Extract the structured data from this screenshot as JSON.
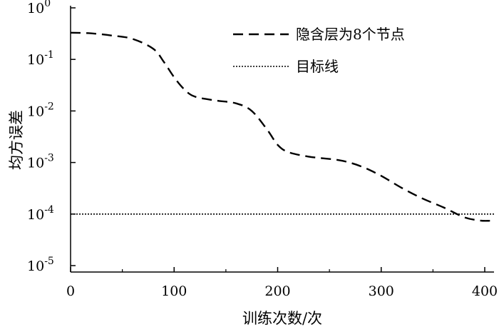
{
  "chart_data": {
    "type": "line",
    "xlabel": "训练次数/次",
    "ylabel": "均方误差",
    "xlim": [
      0,
      410
    ],
    "ylim": [
      1e-05,
      1
    ],
    "yscale": "log",
    "grid": false,
    "legend_position": "top-right",
    "x_ticks": [
      {
        "value": 0,
        "label": "0"
      },
      {
        "value": 100,
        "label": "100"
      },
      {
        "value": 200,
        "label": "200"
      },
      {
        "value": 300,
        "label": "300"
      },
      {
        "value": 400,
        "label": "400"
      }
    ],
    "y_ticks": [
      {
        "value": 1,
        "base": "10",
        "exp": "0"
      },
      {
        "value": 0.1,
        "base": "10",
        "exp": "-1"
      },
      {
        "value": 0.01,
        "base": "10",
        "exp": "-2"
      },
      {
        "value": 0.001,
        "base": "10",
        "exp": "-3"
      },
      {
        "value": 0.0001,
        "base": "10",
        "exp": "-4"
      },
      {
        "value": 1e-05,
        "base": "10",
        "exp": "-5"
      }
    ],
    "series": [
      {
        "name": "隐含层为8个节点",
        "style": "dashed",
        "color": "#000000",
        "x": [
          0,
          20,
          40,
          60,
          80,
          90,
          100,
          110,
          120,
          140,
          160,
          175,
          190,
          200,
          210,
          230,
          260,
          280,
          300,
          320,
          340,
          360,
          380,
          395,
          405
        ],
        "y": [
          0.33,
          0.32,
          0.29,
          0.25,
          0.16,
          0.09,
          0.045,
          0.026,
          0.019,
          0.016,
          0.014,
          0.01,
          0.0043,
          0.0022,
          0.0016,
          0.0013,
          0.0011,
          0.00085,
          0.00055,
          0.00032,
          0.0002,
          0.000135,
          8.7e-05,
          7.5e-05,
          7.4e-05
        ]
      },
      {
        "name": "目标线",
        "style": "dotted",
        "color": "#000000",
        "x": [
          0,
          410
        ],
        "y": [
          0.0001,
          0.0001
        ]
      }
    ]
  }
}
